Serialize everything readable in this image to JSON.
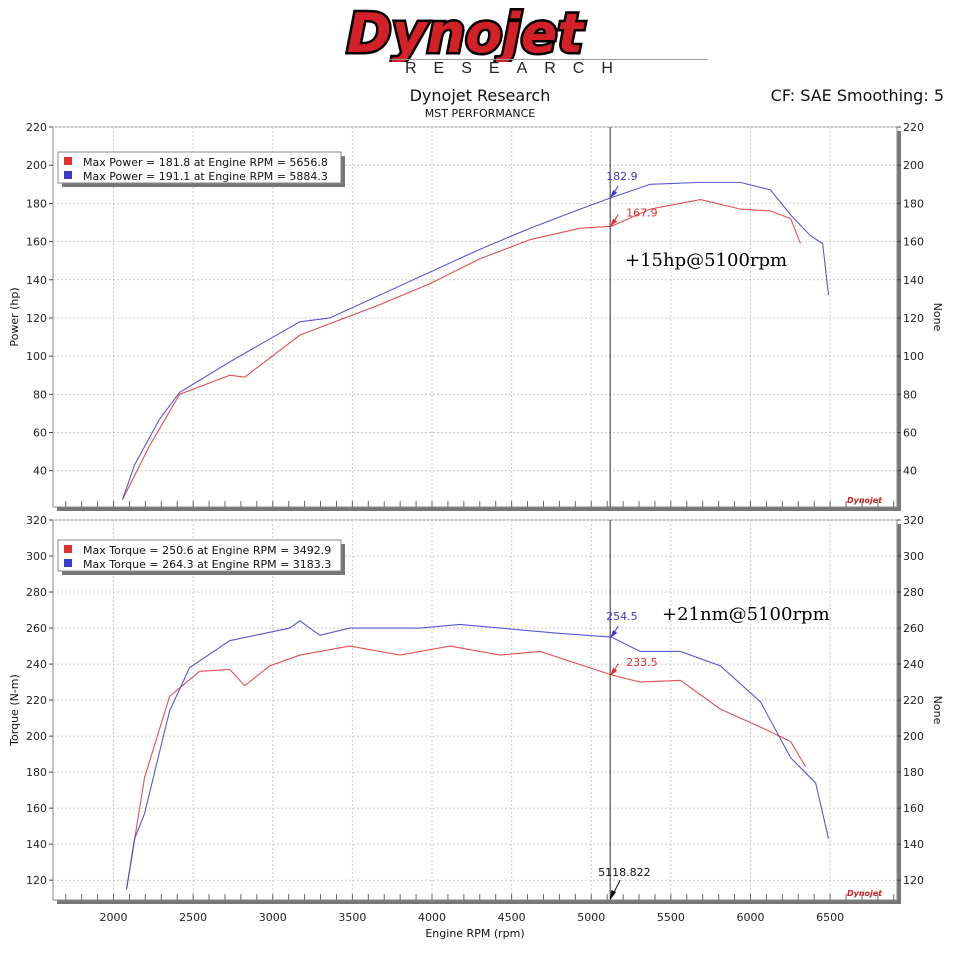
{
  "header": {
    "logo_text": "Dynojet",
    "logo_subtext": "RESEARCH",
    "title": "Dynojet Research",
    "subtitle": "MST PERFORMANCE",
    "cf": "CF: SAE Smoothing: 5"
  },
  "colors": {
    "run1": "#e03030",
    "run2": "#3a3ad0",
    "logo_red": "#d42027"
  },
  "cursor": {
    "rpm_label": "5118.822",
    "rpm": 5118.822
  },
  "chart_data": [
    {
      "type": "line",
      "ylabel": "Power (hp)",
      "ylabel_right": "None",
      "xlim": [
        1620,
        6920
      ],
      "ylim": [
        21,
        220
      ],
      "yticks": [
        40,
        60,
        80,
        100,
        120,
        140,
        160,
        180,
        200,
        220
      ],
      "grid": true,
      "legend_placement": "top-left",
      "legend": [
        "Max Power = 181.8 at Engine RPM = 5656.8",
        "Max Power = 191.1 at Engine RPM = 5884.3"
      ],
      "annotation": "+15hp@5100rpm",
      "cursor_values": [
        {
          "label": "182.9",
          "value": 182.9,
          "series": 1
        },
        {
          "label": "167.9",
          "value": 167.9,
          "series": 0
        }
      ],
      "series": [
        {
          "x": [
            2057,
            2226,
            2415,
            2730,
            2824,
            3170,
            3673,
            3987,
            4302,
            4616,
            4931,
            5126,
            5371,
            5686,
            5937,
            6126,
            6252,
            6314
          ],
          "y": [
            25,
            53,
            80,
            90,
            89,
            111,
            127,
            138,
            151,
            161,
            167,
            168,
            177,
            182,
            177,
            176,
            172,
            159
          ]
        },
        {
          "x": [
            2057,
            2132,
            2289,
            2415,
            2730,
            2981,
            3170,
            3358,
            3673,
            3987,
            4302,
            4616,
            4931,
            5126,
            5371,
            5686,
            5937,
            6126,
            6252,
            6377,
            6453,
            6490
          ],
          "y": [
            25,
            43,
            67,
            81,
            97,
            109,
            118,
            120,
            132,
            144,
            156,
            167,
            177,
            183,
            190,
            191,
            191,
            187,
            174,
            163,
            159,
            132
          ]
        }
      ]
    },
    {
      "type": "line",
      "xlabel": "Engine RPM (rpm)",
      "ylabel": "Torque (N-m)",
      "ylabel_right": "None",
      "xlim": [
        1620,
        6920
      ],
      "ylim": [
        109,
        320
      ],
      "xticks": [
        2000,
        2500,
        3000,
        3500,
        4000,
        4500,
        5000,
        5500,
        6000,
        6500
      ],
      "yticks": [
        120,
        140,
        160,
        180,
        200,
        220,
        240,
        260,
        280,
        300,
        320
      ],
      "grid": true,
      "legend_placement": "top-left",
      "legend": [
        "Max Torque = 250.6 at Engine RPM = 3492.9",
        "Max Torque = 264.3 at Engine RPM = 3183.3"
      ],
      "annotation": "+21nm@5100rpm",
      "cursor_values": [
        {
          "label": "254.5",
          "value": 254.5,
          "series": 1
        },
        {
          "label": "233.5",
          "value": 233.5,
          "series": 0
        }
      ],
      "series": [
        {
          "x": [
            2082,
            2195,
            2352,
            2541,
            2730,
            2824,
            2981,
            3170,
            3484,
            3799,
            4113,
            4428,
            4679,
            5126,
            5308,
            5560,
            5811,
            6063,
            6252,
            6346
          ],
          "y": [
            115,
            177,
            222,
            236,
            237,
            228,
            239,
            245,
            250,
            245,
            250,
            245,
            247,
            234,
            230,
            231,
            215,
            205,
            197,
            183
          ]
        },
        {
          "x": [
            2082,
            2132,
            2195,
            2352,
            2478,
            2730,
            3107,
            3170,
            3296,
            3484,
            3925,
            4176,
            4428,
            4805,
            5126,
            5308,
            5560,
            5811,
            6063,
            6252,
            6409,
            6490
          ],
          "y": [
            115,
            143,
            157,
            214,
            238,
            253,
            260,
            264,
            256,
            260,
            260,
            262,
            260,
            257,
            255,
            247,
            247,
            239,
            219,
            188,
            174,
            143
          ]
        }
      ]
    }
  ]
}
